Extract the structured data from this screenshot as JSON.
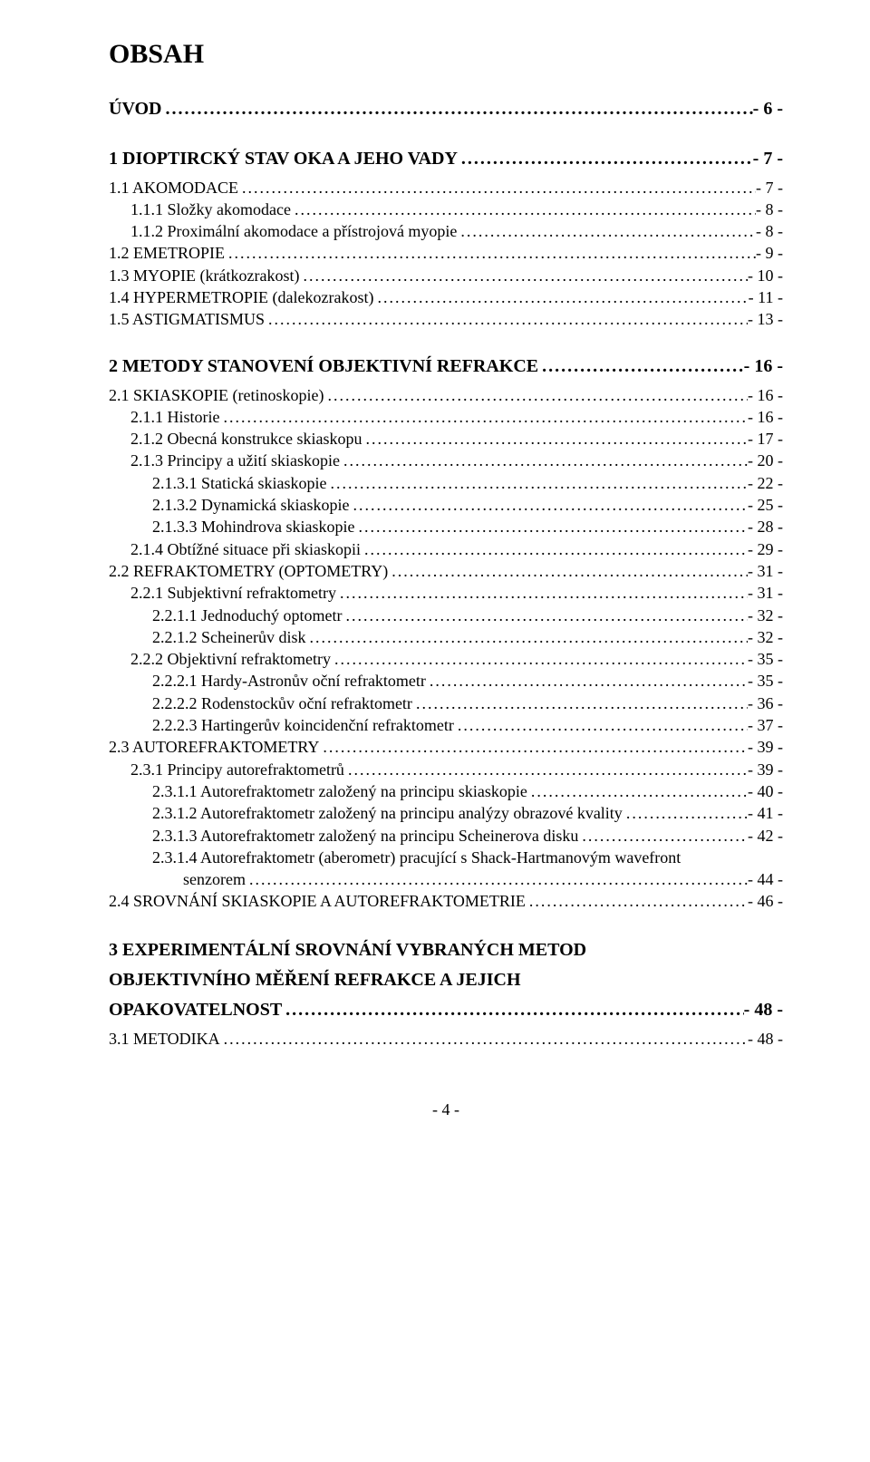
{
  "title": "OBSAH",
  "footer": "- 4 -",
  "toc": [
    {
      "level": 0,
      "label": "ÚVOD",
      "page": "- 6 -",
      "gap": "none"
    },
    {
      "level": 0,
      "label": "1  DIOPTIRCKÝ STAV OKA A JEHO VADY",
      "page": "- 7 -",
      "gap": "lg"
    },
    {
      "level": 1,
      "label": "1.1  AKOMODACE",
      "page": "- 7 -",
      "gap": "none"
    },
    {
      "level": 2,
      "label": "1.1.1  Složky akomodace",
      "page": "- 8 -",
      "gap": "none"
    },
    {
      "level": 2,
      "label": "1.1.2  Proximální akomodace a přístrojová myopie",
      "page": "- 8 -",
      "gap": "none"
    },
    {
      "level": 1,
      "label": "1.2  EMETROPIE",
      "page": "- 9 -",
      "gap": "none"
    },
    {
      "level": 1,
      "label": "1.3  MYOPIE (krátkozrakost)",
      "page": "- 10 -",
      "gap": "none"
    },
    {
      "level": 1,
      "label": "1.4  HYPERMETROPIE (dalekozrakost)",
      "page": "- 11 -",
      "gap": "none"
    },
    {
      "level": 1,
      "label": "1.5  ASTIGMATISMUS",
      "page": "- 13 -",
      "gap": "none"
    },
    {
      "level": 0,
      "label": "2  METODY STANOVENÍ OBJEKTIVNÍ REFRAKCE",
      "page": "- 16 -",
      "gap": "before"
    },
    {
      "level": 1,
      "label": "2.1  SKIASKOPIE (retinoskopie)",
      "page": "- 16 -",
      "gap": "none"
    },
    {
      "level": 2,
      "label": "2.1.1  Historie",
      "page": "- 16 -",
      "gap": "none"
    },
    {
      "level": 2,
      "label": "2.1.2  Obecná konstrukce skiaskopu",
      "page": "- 17 -",
      "gap": "none"
    },
    {
      "level": 2,
      "label": "2.1.3  Principy a užití skiaskopie",
      "page": "- 20 -",
      "gap": "none"
    },
    {
      "level": 3,
      "label": "2.1.3.1  Statická skiaskopie",
      "page": "- 22 -",
      "gap": "none"
    },
    {
      "level": 3,
      "label": "2.1.3.2  Dynamická skiaskopie",
      "page": "- 25 -",
      "gap": "none"
    },
    {
      "level": 3,
      "label": "2.1.3.3  Mohindrova skiaskopie",
      "page": "- 28 -",
      "gap": "none"
    },
    {
      "level": 2,
      "label": "2.1.4  Obtížné situace při skiaskopii",
      "page": "- 29 -",
      "gap": "none"
    },
    {
      "level": 1,
      "label": "2.2  REFRAKTOMETRY (OPTOMETRY)",
      "page": "- 31 -",
      "gap": "none"
    },
    {
      "level": 2,
      "label": "2.2.1  Subjektivní refraktometry",
      "page": "- 31 -",
      "gap": "none"
    },
    {
      "level": 3,
      "label": "2.2.1.1  Jednoduchý optometr",
      "page": "- 32 -",
      "gap": "none"
    },
    {
      "level": 3,
      "label": "2.2.1.2  Scheinerův disk",
      "page": "- 32 -",
      "gap": "none"
    },
    {
      "level": 2,
      "label": "2.2.2  Objektivní refraktometry",
      "page": "- 35 -",
      "gap": "none"
    },
    {
      "level": 3,
      "label": "2.2.2.1  Hardy-Astronův oční refraktometr",
      "page": "- 35 -",
      "gap": "none"
    },
    {
      "level": 3,
      "label": "2.2.2.2  Rodenstockův oční refraktometr",
      "page": "- 36 -",
      "gap": "none"
    },
    {
      "level": 3,
      "label": "2.2.2.3  Hartingerův koincidenční refraktometr",
      "page": "- 37 -",
      "gap": "none"
    },
    {
      "level": 1,
      "label": "2.3  AUTOREFRAKTOMETRY",
      "page": "- 39 -",
      "gap": "none"
    },
    {
      "level": 2,
      "label": "2.3.1  Principy autorefraktometrů",
      "page": "- 39 -",
      "gap": "none"
    },
    {
      "level": 3,
      "label": "2.3.1.1  Autorefraktometr založený na principu skiaskopie",
      "page": "- 40 -",
      "gap": "none"
    },
    {
      "level": 3,
      "label": "2.3.1.2  Autorefraktometr založený na principu analýzy obrazové kvality",
      "page": "- 41 -",
      "gap": "none"
    },
    {
      "level": 3,
      "label": "2.3.1.3  Autorefraktometr založený na principu Scheinerova disku",
      "page": "- 42 -",
      "gap": "none"
    },
    {
      "level": 3,
      "label": "2.3.1.4  Autorefraktometr (aberometr) pracující s Shack-Hartmanovým wavefront",
      "page": "",
      "gap": "none",
      "noLeader": true
    },
    {
      "level": "3b",
      "label": "senzorem",
      "page": "- 44 -",
      "gap": "none"
    },
    {
      "level": 1,
      "label": "2.4  SROVNÁNÍ SKIASKOPIE A AUTOREFRAKTOMETRIE",
      "page": "- 46 -",
      "gap": "none"
    },
    {
      "level": 0,
      "label": "3  EXPERIMENTÁLNÍ SROVNÁNÍ VYBRANÝCH METOD",
      "page": "",
      "gap": "lg",
      "noLeader": true
    },
    {
      "level": 0,
      "label": "OBJEKTIVNÍHO MĚŘENÍ REFRAKCE A JEJICH",
      "page": "",
      "gap": "none",
      "noLeader": true
    },
    {
      "level": 0,
      "label": "OPAKOVATELNOST",
      "page": "- 48 -",
      "gap": "none"
    },
    {
      "level": 1,
      "label": "3.1  METODIKA",
      "page": "- 48 -",
      "gap": "none"
    }
  ]
}
